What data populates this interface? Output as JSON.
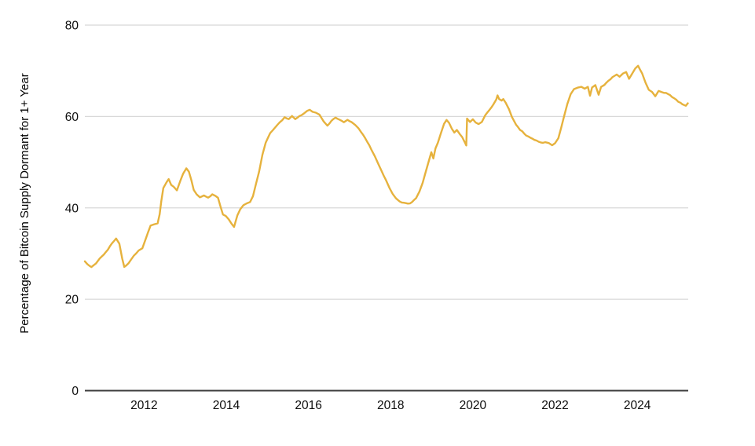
{
  "colors": {
    "line": "#E6B23D",
    "grid": "#D8D8D8",
    "axis": "#3C3C3C",
    "text": "#0D0D0D",
    "background": "#FFFFFF"
  },
  "chart_data": {
    "type": "line",
    "ylabel": "Percentage of Bitcoin Supply Dormant for 1+ Year",
    "y_ticks": [
      0,
      20,
      40,
      60,
      80
    ],
    "x_ticks": [
      2012,
      2014,
      2016,
      2018,
      2020,
      2022,
      2024
    ],
    "xlim": [
      2010.56,
      2025.24
    ],
    "ylim": [
      0,
      80
    ],
    "grid": "horizontal-only",
    "legend": "none",
    "series": [
      {
        "name": "Percent of Bitcoin supply dormant 1+ year",
        "color": "#E6B23D",
        "points": [
          [
            2010.56,
            28.3
          ],
          [
            2010.62,
            27.6
          ],
          [
            2010.72,
            27.1
          ],
          [
            2010.83,
            27.8
          ],
          [
            2010.92,
            28.9
          ],
          [
            2011.02,
            29.8
          ],
          [
            2011.12,
            30.9
          ],
          [
            2011.22,
            32.2
          ],
          [
            2011.32,
            33.2
          ],
          [
            2011.4,
            32.2
          ],
          [
            2011.47,
            28.9
          ],
          [
            2011.52,
            27.2
          ],
          [
            2011.62,
            27.8
          ],
          [
            2011.75,
            29.4
          ],
          [
            2011.87,
            30.6
          ],
          [
            2011.96,
            31.1
          ],
          [
            2012.05,
            33.5
          ],
          [
            2012.1,
            34.8
          ],
          [
            2012.16,
            36.1
          ],
          [
            2012.25,
            36.3
          ],
          [
            2012.33,
            36.6
          ],
          [
            2012.38,
            38.5
          ],
          [
            2012.42,
            41.5
          ],
          [
            2012.47,
            44.3
          ],
          [
            2012.55,
            45.7
          ],
          [
            2012.6,
            46.2
          ],
          [
            2012.66,
            45.0
          ],
          [
            2012.72,
            44.6
          ],
          [
            2012.8,
            43.8
          ],
          [
            2012.88,
            45.8
          ],
          [
            2012.95,
            47.3
          ],
          [
            2013.03,
            48.5
          ],
          [
            2013.09,
            47.8
          ],
          [
            2013.15,
            46.0
          ],
          [
            2013.21,
            43.9
          ],
          [
            2013.28,
            42.9
          ],
          [
            2013.36,
            42.3
          ],
          [
            2013.46,
            42.7
          ],
          [
            2013.56,
            42.4
          ],
          [
            2013.66,
            42.9
          ],
          [
            2013.74,
            42.5
          ],
          [
            2013.8,
            42.1
          ],
          [
            2013.86,
            40.2
          ],
          [
            2013.92,
            38.4
          ],
          [
            2013.99,
            38.1
          ],
          [
            2014.06,
            37.4
          ],
          [
            2014.13,
            36.4
          ],
          [
            2014.19,
            35.7
          ],
          [
            2014.27,
            38.2
          ],
          [
            2014.34,
            39.7
          ],
          [
            2014.42,
            40.6
          ],
          [
            2014.5,
            41.0
          ],
          [
            2014.58,
            41.3
          ],
          [
            2014.65,
            42.6
          ],
          [
            2014.72,
            45.0
          ],
          [
            2014.8,
            47.8
          ],
          [
            2014.88,
            51.5
          ],
          [
            2014.96,
            54.3
          ],
          [
            2015.07,
            56.3
          ],
          [
            2015.19,
            57.6
          ],
          [
            2015.3,
            58.8
          ],
          [
            2015.42,
            59.8
          ],
          [
            2015.52,
            59.5
          ],
          [
            2015.6,
            60.1
          ],
          [
            2015.68,
            59.4
          ],
          [
            2015.78,
            60.2
          ],
          [
            2015.88,
            60.7
          ],
          [
            2015.97,
            61.3
          ],
          [
            2016.03,
            61.5
          ],
          [
            2016.1,
            61.0
          ],
          [
            2016.18,
            60.7
          ],
          [
            2016.27,
            60.3
          ],
          [
            2016.37,
            59.0
          ],
          [
            2016.46,
            58.0
          ],
          [
            2016.56,
            59.0
          ],
          [
            2016.66,
            59.7
          ],
          [
            2016.76,
            59.4
          ],
          [
            2016.86,
            58.6
          ],
          [
            2016.95,
            59.2
          ],
          [
            2017.05,
            58.8
          ],
          [
            2017.14,
            58.2
          ],
          [
            2017.22,
            57.4
          ],
          [
            2017.33,
            56.0
          ],
          [
            2017.43,
            54.5
          ],
          [
            2017.53,
            52.8
          ],
          [
            2017.62,
            51.1
          ],
          [
            2017.7,
            49.5
          ],
          [
            2017.78,
            48.0
          ],
          [
            2017.88,
            46.2
          ],
          [
            2017.97,
            44.4
          ],
          [
            2018.05,
            43.0
          ],
          [
            2018.13,
            42.1
          ],
          [
            2018.22,
            41.4
          ],
          [
            2018.32,
            41.1
          ],
          [
            2018.42,
            40.9
          ],
          [
            2018.52,
            41.2
          ],
          [
            2018.62,
            42.1
          ],
          [
            2018.7,
            43.6
          ],
          [
            2018.78,
            45.6
          ],
          [
            2018.85,
            47.8
          ],
          [
            2018.92,
            50.1
          ],
          [
            2018.99,
            52.2
          ],
          [
            2019.04,
            50.8
          ],
          [
            2019.09,
            53.1
          ],
          [
            2019.15,
            54.4
          ],
          [
            2019.22,
            56.3
          ],
          [
            2019.3,
            58.3
          ],
          [
            2019.36,
            59.2
          ],
          [
            2019.42,
            58.5
          ],
          [
            2019.49,
            57.2
          ],
          [
            2019.55,
            56.5
          ],
          [
            2019.61,
            57.1
          ],
          [
            2019.68,
            56.2
          ],
          [
            2019.74,
            55.4
          ],
          [
            2019.8,
            54.4
          ],
          [
            2019.84,
            53.6
          ],
          [
            2019.86,
            59.4
          ],
          [
            2019.93,
            58.8
          ],
          [
            2020.0,
            59.3
          ],
          [
            2020.07,
            58.7
          ],
          [
            2020.14,
            58.3
          ],
          [
            2020.22,
            58.9
          ],
          [
            2020.3,
            60.2
          ],
          [
            2020.4,
            61.3
          ],
          [
            2020.5,
            62.6
          ],
          [
            2020.57,
            63.8
          ],
          [
            2020.6,
            64.6
          ],
          [
            2020.64,
            63.9
          ],
          [
            2020.7,
            63.6
          ],
          [
            2020.74,
            63.8
          ],
          [
            2020.8,
            62.9
          ],
          [
            2020.88,
            61.6
          ],
          [
            2020.95,
            60.0
          ],
          [
            2021.05,
            58.3
          ],
          [
            2021.15,
            57.1
          ],
          [
            2021.25,
            56.3
          ],
          [
            2021.35,
            55.6
          ],
          [
            2021.45,
            55.0
          ],
          [
            2021.55,
            54.6
          ],
          [
            2021.65,
            54.3
          ],
          [
            2021.76,
            54.4
          ],
          [
            2021.85,
            54.2
          ],
          [
            2021.93,
            53.6
          ],
          [
            2022.0,
            54.2
          ],
          [
            2022.08,
            55.2
          ],
          [
            2022.15,
            57.5
          ],
          [
            2022.22,
            60.0
          ],
          [
            2022.3,
            62.8
          ],
          [
            2022.38,
            64.8
          ],
          [
            2022.46,
            65.9
          ],
          [
            2022.55,
            66.2
          ],
          [
            2022.64,
            66.4
          ],
          [
            2022.72,
            66.1
          ],
          [
            2022.8,
            66.6
          ],
          [
            2022.85,
            64.6
          ],
          [
            2022.9,
            66.3
          ],
          [
            2022.98,
            66.8
          ],
          [
            2023.06,
            64.8
          ],
          [
            2023.12,
            66.5
          ],
          [
            2023.2,
            67.0
          ],
          [
            2023.3,
            67.8
          ],
          [
            2023.4,
            68.6
          ],
          [
            2023.5,
            69.2
          ],
          [
            2023.57,
            68.8
          ],
          [
            2023.65,
            69.4
          ],
          [
            2023.73,
            69.7
          ],
          [
            2023.8,
            68.3
          ],
          [
            2023.88,
            69.6
          ],
          [
            2023.95,
            70.6
          ],
          [
            2024.02,
            71.2
          ],
          [
            2024.06,
            70.5
          ],
          [
            2024.12,
            69.4
          ],
          [
            2024.2,
            67.4
          ],
          [
            2024.28,
            65.9
          ],
          [
            2024.36,
            65.4
          ],
          [
            2024.44,
            64.4
          ],
          [
            2024.52,
            65.7
          ],
          [
            2024.6,
            65.4
          ],
          [
            2024.7,
            65.1
          ],
          [
            2024.8,
            64.7
          ],
          [
            2024.9,
            64.0
          ],
          [
            2025.0,
            63.3
          ],
          [
            2025.1,
            62.7
          ],
          [
            2025.18,
            62.4
          ],
          [
            2025.23,
            62.9
          ]
        ]
      }
    ]
  }
}
